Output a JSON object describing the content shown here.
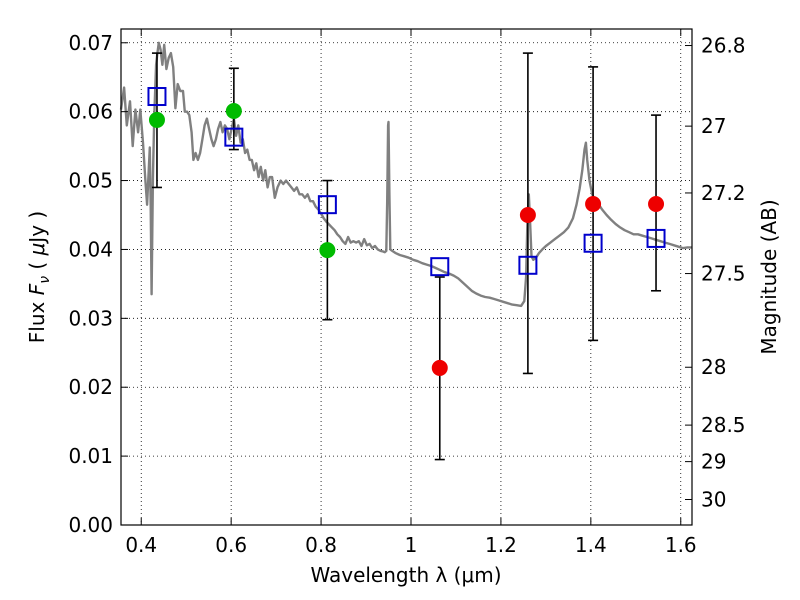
{
  "chart_data": {
    "type": "scatter",
    "xlabel": "Wavelength  λ (μm)",
    "ylabel": "Flux  F_ν  ( μJy )",
    "y2label": "Magnitude (AB)",
    "xlim": [
      0.355,
      1.625
    ],
    "ylim": [
      0.0,
      0.072
    ],
    "grid": true,
    "x_ticks": [
      0.4,
      0.6,
      0.8,
      1.0,
      1.2,
      1.4,
      1.6
    ],
    "x_tick_labels": [
      "0.4",
      "0.6",
      "0.8",
      "1",
      "1.2",
      "1.4",
      "1.6"
    ],
    "y_ticks": [
      0.0,
      0.01,
      0.02,
      0.03,
      0.04,
      0.05,
      0.06,
      0.07
    ],
    "y_tick_labels": [
      "0.00",
      "0.01",
      "0.02",
      "0.03",
      "0.04",
      "0.05",
      "0.06",
      "0.07"
    ],
    "y2_ticks": [
      {
        "label": "26.8",
        "flux": 0.0696
      },
      {
        "label": "27",
        "flux": 0.0579
      },
      {
        "label": "27.2",
        "flux": 0.0482
      },
      {
        "label": "27.5",
        "flux": 0.0365
      },
      {
        "label": "28",
        "flux": 0.0229
      },
      {
        "label": "28.5",
        "flux": 0.0145
      },
      {
        "label": "29",
        "flux": 0.0092
      },
      {
        "label": "30",
        "flux": 0.0037
      }
    ],
    "errorbars": [
      {
        "x": 0.435,
        "low": 0.049,
        "high": 0.0685
      },
      {
        "x": 0.606,
        "low": 0.0545,
        "high": 0.0663
      },
      {
        "x": 0.814,
        "low": 0.0298,
        "high": 0.05
      },
      {
        "x": 1.064,
        "low": 0.0095,
        "high": 0.036
      },
      {
        "x": 1.26,
        "low": 0.022,
        "high": 0.0685
      },
      {
        "x": 1.405,
        "low": 0.0268,
        "high": 0.0665
      },
      {
        "x": 1.545,
        "low": 0.034,
        "high": 0.0595
      }
    ],
    "series": [
      {
        "kind": "line",
        "color": "#808080",
        "points": [
          [
            0.355,
            0.0603
          ],
          [
            0.362,
            0.0635
          ],
          [
            0.368,
            0.058
          ],
          [
            0.375,
            0.0615
          ],
          [
            0.381,
            0.055
          ],
          [
            0.387,
            0.0603
          ],
          [
            0.393,
            0.057
          ],
          [
            0.398,
            0.0603
          ],
          [
            0.404,
            0.0555
          ],
          [
            0.409,
            0.0502
          ],
          [
            0.413,
            0.0465
          ],
          [
            0.416,
            0.0505
          ],
          [
            0.419,
            0.0548
          ],
          [
            0.421,
            0.0462
          ],
          [
            0.423,
            0.0335
          ],
          [
            0.426,
            0.0503
          ],
          [
            0.429,
            0.0595
          ],
          [
            0.433,
            0.0668
          ],
          [
            0.436,
            0.0685
          ],
          [
            0.439,
            0.07
          ],
          [
            0.443,
            0.069
          ],
          [
            0.447,
            0.0668
          ],
          [
            0.451,
            0.0697
          ],
          [
            0.456,
            0.0662
          ],
          [
            0.461,
            0.0678
          ],
          [
            0.466,
            0.0685
          ],
          [
            0.471,
            0.0665
          ],
          [
            0.476,
            0.0605
          ],
          [
            0.481,
            0.064
          ],
          [
            0.487,
            0.063
          ],
          [
            0.493,
            0.063
          ],
          [
            0.497,
            0.06
          ],
          [
            0.502,
            0.06
          ],
          [
            0.507,
            0.0595
          ],
          [
            0.512,
            0.057
          ],
          [
            0.516,
            0.053
          ],
          [
            0.521,
            0.054
          ],
          [
            0.526,
            0.053
          ],
          [
            0.531,
            0.054
          ],
          [
            0.536,
            0.056
          ],
          [
            0.541,
            0.058
          ],
          [
            0.546,
            0.059
          ],
          [
            0.551,
            0.0575
          ],
          [
            0.556,
            0.056
          ],
          [
            0.561,
            0.055
          ],
          [
            0.566,
            0.056
          ],
          [
            0.571,
            0.0575
          ],
          [
            0.576,
            0.0585
          ],
          [
            0.581,
            0.057
          ],
          [
            0.586,
            0.058
          ],
          [
            0.591,
            0.0575
          ],
          [
            0.596,
            0.056
          ],
          [
            0.601,
            0.0575
          ],
          [
            0.606,
            0.059
          ],
          [
            0.611,
            0.0565
          ],
          [
            0.616,
            0.058
          ],
          [
            0.621,
            0.0555
          ],
          [
            0.626,
            0.056
          ],
          [
            0.631,
            0.054
          ],
          [
            0.636,
            0.0545
          ],
          [
            0.641,
            0.053
          ],
          [
            0.646,
            0.053
          ],
          [
            0.651,
            0.0515
          ],
          [
            0.656,
            0.0525
          ],
          [
            0.661,
            0.0505
          ],
          [
            0.666,
            0.052
          ],
          [
            0.671,
            0.05
          ],
          [
            0.676,
            0.0515
          ],
          [
            0.681,
            0.049
          ],
          [
            0.686,
            0.0505
          ],
          [
            0.691,
            0.0505
          ],
          [
            0.697,
            0.0475
          ],
          [
            0.703,
            0.049
          ],
          [
            0.71,
            0.05
          ],
          [
            0.716,
            0.0495
          ],
          [
            0.722,
            0.05
          ],
          [
            0.728,
            0.0495
          ],
          [
            0.734,
            0.049
          ],
          [
            0.74,
            0.0485
          ],
          [
            0.746,
            0.049
          ],
          [
            0.752,
            0.048
          ],
          [
            0.758,
            0.048
          ],
          [
            0.764,
            0.0475
          ],
          [
            0.77,
            0.048
          ],
          [
            0.776,
            0.047
          ],
          [
            0.782,
            0.047
          ],
          [
            0.788,
            0.0462
          ],
          [
            0.794,
            0.0458
          ],
          [
            0.8,
            0.0452
          ],
          [
            0.806,
            0.0445
          ],
          [
            0.812,
            0.044
          ],
          [
            0.818,
            0.0436
          ],
          [
            0.824,
            0.0432
          ],
          [
            0.83,
            0.0428
          ],
          [
            0.836,
            0.0422
          ],
          [
            0.842,
            0.0418
          ],
          [
            0.848,
            0.0412
          ],
          [
            0.854,
            0.0408
          ],
          [
            0.86,
            0.0418
          ],
          [
            0.866,
            0.041
          ],
          [
            0.872,
            0.0412
          ],
          [
            0.878,
            0.041
          ],
          [
            0.884,
            0.0412
          ],
          [
            0.89,
            0.0405
          ],
          [
            0.896,
            0.0415
          ],
          [
            0.902,
            0.0406
          ],
          [
            0.908,
            0.0408
          ],
          [
            0.914,
            0.0402
          ],
          [
            0.92,
            0.0405
          ],
          [
            0.926,
            0.04
          ],
          [
            0.932,
            0.0398
          ],
          [
            0.938,
            0.0397
          ],
          [
            0.942,
            0.0396
          ],
          [
            0.945,
            0.0398
          ],
          [
            0.947,
            0.047
          ],
          [
            0.949,
            0.058
          ],
          [
            0.95,
            0.0585
          ],
          [
            0.952,
            0.048
          ],
          [
            0.954,
            0.04
          ],
          [
            0.958,
            0.0398
          ],
          [
            0.965,
            0.0395
          ],
          [
            0.975,
            0.0392
          ],
          [
            0.985,
            0.039
          ],
          [
            0.995,
            0.0388
          ],
          [
            1.005,
            0.0385
          ],
          [
            1.015,
            0.0383
          ],
          [
            1.025,
            0.038
          ],
          [
            1.035,
            0.0378
          ],
          [
            1.045,
            0.0376
          ],
          [
            1.055,
            0.0373
          ],
          [
            1.065,
            0.037
          ],
          [
            1.075,
            0.0367
          ],
          [
            1.085,
            0.0365
          ],
          [
            1.095,
            0.0362
          ],
          [
            1.105,
            0.0358
          ],
          [
            1.115,
            0.0352
          ],
          [
            1.125,
            0.0346
          ],
          [
            1.135,
            0.034
          ],
          [
            1.145,
            0.0336
          ],
          [
            1.155,
            0.0333
          ],
          [
            1.165,
            0.0331
          ],
          [
            1.175,
            0.033
          ],
          [
            1.185,
            0.0328
          ],
          [
            1.195,
            0.0326
          ],
          [
            1.205,
            0.0324
          ],
          [
            1.215,
            0.0322
          ],
          [
            1.225,
            0.032
          ],
          [
            1.235,
            0.0319
          ],
          [
            1.245,
            0.0318
          ],
          [
            1.252,
            0.0325
          ],
          [
            1.256,
            0.036
          ],
          [
            1.259,
            0.044
          ],
          [
            1.262,
            0.048
          ],
          [
            1.265,
            0.044
          ],
          [
            1.268,
            0.039
          ],
          [
            1.272,
            0.0385
          ],
          [
            1.278,
            0.0388
          ],
          [
            1.285,
            0.0395
          ],
          [
            1.292,
            0.04
          ],
          [
            1.3,
            0.0405
          ],
          [
            1.31,
            0.041
          ],
          [
            1.32,
            0.0415
          ],
          [
            1.33,
            0.042
          ],
          [
            1.34,
            0.0425
          ],
          [
            1.35,
            0.0432
          ],
          [
            1.36,
            0.0445
          ],
          [
            1.368,
            0.0465
          ],
          [
            1.375,
            0.0488
          ],
          [
            1.381,
            0.0515
          ],
          [
            1.386,
            0.0545
          ],
          [
            1.389,
            0.0555
          ],
          [
            1.392,
            0.053
          ],
          [
            1.397,
            0.05
          ],
          [
            1.403,
            0.048
          ],
          [
            1.41,
            0.047
          ],
          [
            1.418,
            0.0465
          ],
          [
            1.425,
            0.0458
          ],
          [
            1.435,
            0.045
          ],
          [
            1.445,
            0.0443
          ],
          [
            1.455,
            0.0437
          ],
          [
            1.465,
            0.0432
          ],
          [
            1.475,
            0.0428
          ],
          [
            1.485,
            0.0425
          ],
          [
            1.495,
            0.0422
          ],
          [
            1.505,
            0.0422
          ],
          [
            1.515,
            0.042
          ],
          [
            1.525,
            0.0418
          ],
          [
            1.535,
            0.0416
          ],
          [
            1.545,
            0.0414
          ],
          [
            1.555,
            0.0412
          ],
          [
            1.565,
            0.041
          ],
          [
            1.575,
            0.0408
          ],
          [
            1.585,
            0.0406
          ],
          [
            1.595,
            0.0404
          ],
          [
            1.605,
            0.0402
          ],
          [
            1.615,
            0.0403
          ],
          [
            1.625,
            0.0403
          ]
        ]
      },
      {
        "kind": "markers",
        "marker": "open-square",
        "color": "#0000cc",
        "points": [
          [
            0.435,
            0.0622
          ],
          [
            0.606,
            0.0563
          ],
          [
            0.814,
            0.0465
          ],
          [
            1.064,
            0.0375
          ],
          [
            1.26,
            0.0377
          ],
          [
            1.405,
            0.0409
          ],
          [
            1.545,
            0.0416
          ]
        ]
      },
      {
        "kind": "markers",
        "marker": "filled-circle",
        "color": "#00bb00",
        "points": [
          [
            0.435,
            0.0588
          ],
          [
            0.606,
            0.0601
          ],
          [
            0.814,
            0.0399
          ]
        ]
      },
      {
        "kind": "markers",
        "marker": "filled-circle",
        "color": "#ee0000",
        "points": [
          [
            1.064,
            0.0228
          ],
          [
            1.26,
            0.045
          ],
          [
            1.405,
            0.0466
          ],
          [
            1.545,
            0.0466
          ]
        ]
      }
    ]
  }
}
